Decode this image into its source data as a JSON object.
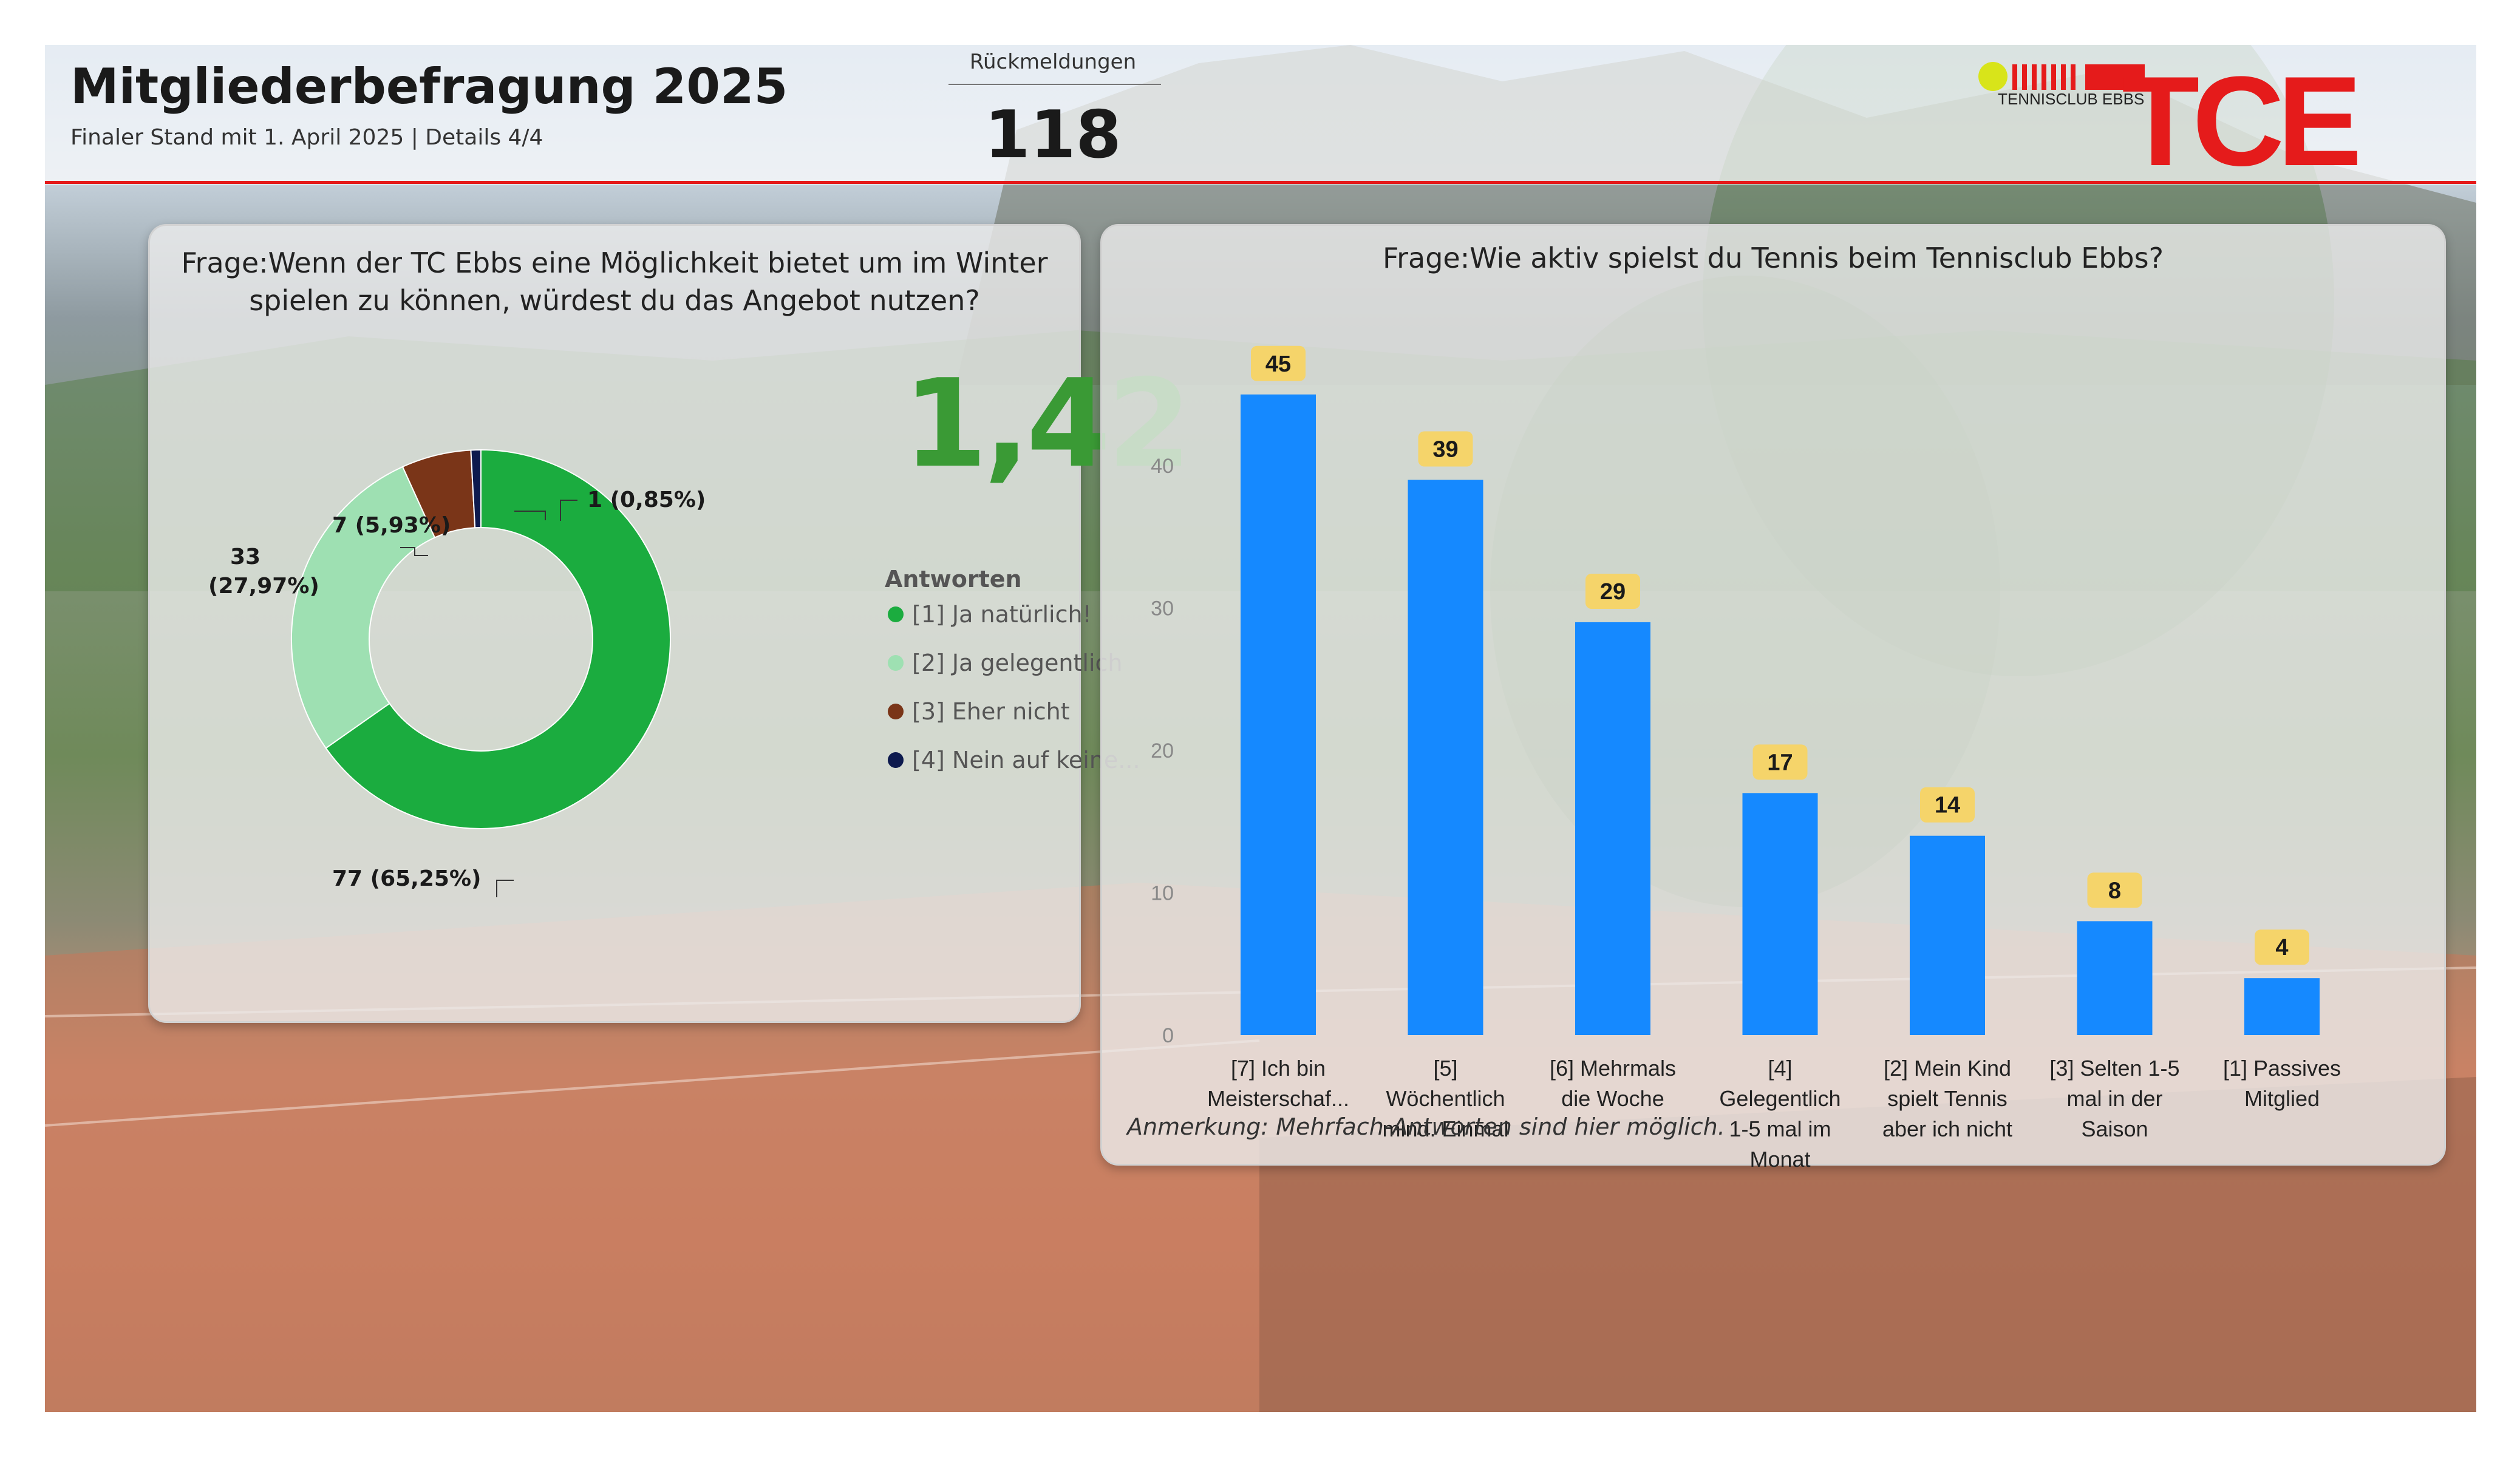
{
  "header": {
    "title": "Mitgliederbefragung 2025",
    "subtitle": "Finaler Stand mit 1. April  2025 | Details 4/4",
    "responses_label": "Rückmeldungen",
    "responses_value": "118",
    "logo_text": "TCE",
    "logo_subtext": "TENNISCLUB EBBS"
  },
  "left_panel": {
    "question_line1": "Frage:Wenn der TC Ebbs eine Möglichkeit bietet um im Winter",
    "question_line2": "spielen zu können, würdest du das Angebot nutzen?",
    "kpi_value": "1,42",
    "legend_title": "Antworten",
    "label_77": "77 (65,25%)",
    "label_33_a": "33",
    "label_33_b": "(27,97%)",
    "label_7": "7 (5,93%)",
    "label_1": "1 (0,85%)"
  },
  "right_panel": {
    "question": "Frage:Wie aktiv spielst du Tennis beim Tennisclub Ebbs?",
    "note": "Anmerkung: Mehrfach-Antworten sind hier möglich."
  },
  "colors": {
    "accent_red": "#e51b1b",
    "kpi_green": "#3a9a35",
    "bar_blue": "#1589ff",
    "data_label_bg": "#f5d46a"
  },
  "chart_data": [
    {
      "type": "pie",
      "variant": "donut",
      "title": "Frage:Wenn der TC Ebbs eine Möglichkeit bietet um im Winter spielen zu können, würdest du das Angebot nutzen?",
      "legend_title": "Antworten",
      "legend_position": "right",
      "categories": [
        "[1] Ja natürlich!",
        "[2] Ja gelegentlich",
        "[3] Eher nicht",
        "[4] Nein auf keine..."
      ],
      "values": [
        77,
        33,
        7,
        1
      ],
      "percent_labels": [
        "65,25%",
        "27,97%",
        "5,93%",
        "0,85%"
      ],
      "colors": [
        "#1bac3f",
        "#9ee0b2",
        "#7a3518",
        "#0d1a4e"
      ]
    },
    {
      "type": "bar",
      "title": "Frage:Wie aktiv spielst du Tennis beim Tennisclub Ebbs?",
      "categories": [
        [
          "[7] Ich bin",
          "Meisterschaf..."
        ],
        [
          "[5]",
          "Wöchentlich",
          "mind. Einmal"
        ],
        [
          "[6] Mehrmals",
          "die Woche"
        ],
        [
          "[4]",
          "Gelegentlich",
          "1-5 mal im",
          "Monat"
        ],
        [
          "[2] Mein Kind",
          "spielt Tennis",
          "aber ich nicht"
        ],
        [
          "[3] Selten 1-5",
          "mal in der",
          "Saison"
        ],
        [
          "[1] Passives",
          "Mitglied"
        ]
      ],
      "values": [
        45,
        39,
        29,
        17,
        14,
        8,
        4
      ],
      "ylim": [
        0,
        45
      ],
      "yticks": [
        0,
        10,
        20,
        30,
        40
      ],
      "grid": false,
      "color": "#1589ff"
    }
  ]
}
